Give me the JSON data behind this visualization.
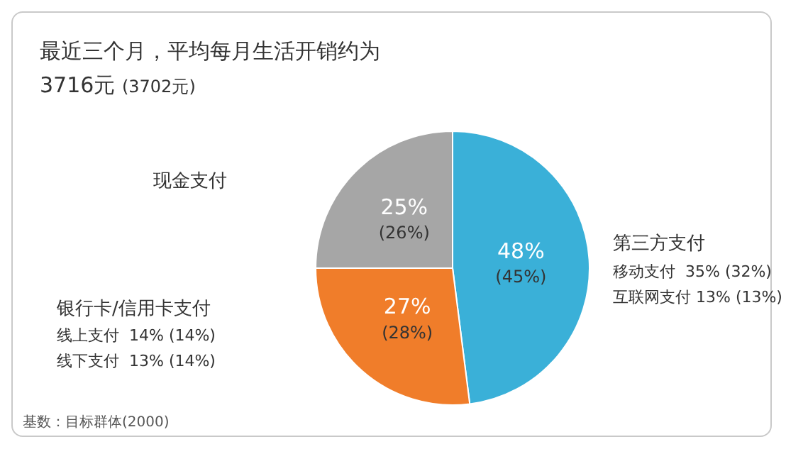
{
  "chart_data": {
    "type": "pie",
    "title": "最近三个月，平均每月生活开销约为3716元",
    "subtitle": "(3702元)",
    "categories": [
      "第三方支付",
      "银行卡/信用卡支付",
      "现金支付"
    ],
    "values": [
      48,
      27,
      25
    ],
    "colors": [
      "#3ab0d8",
      "#f07d2a",
      "#a6a6a6"
    ],
    "value_labels": [
      "48%",
      "27%",
      "25%"
    ],
    "annotations": [
      "(45%)",
      "(28%)",
      "(26%)",
      "移动支付  35% (32%)",
      "互联网支付 13% (13%)",
      "线上支付  14% (14%)",
      "线下支付  13% (14%)",
      "基数：目标群体(2000)"
    ]
  }
}
